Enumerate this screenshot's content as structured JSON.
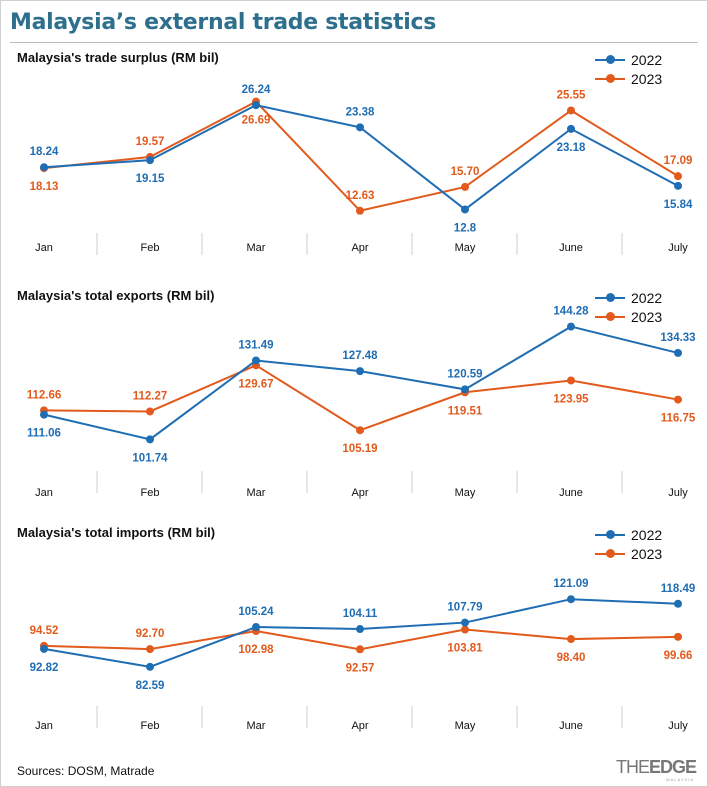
{
  "title": "Malaysia’s external trade statistics",
  "legend": {
    "series": [
      "2022",
      "2023"
    ]
  },
  "colors": {
    "2022": "#1f6db3",
    "2023": "#e25a1c",
    "title": "#2e6f8e"
  },
  "footer": {
    "sources": "Sources: DOSM, Matrade",
    "brand_the": "THE",
    "brand_edge": "EDGE",
    "brand_sub": "MALAYSIA"
  },
  "chart_data": [
    {
      "type": "line",
      "title": "Malaysia's trade surplus (RM bil)",
      "categories": [
        "Jan",
        "Feb",
        "Mar",
        "Apr",
        "May",
        "June",
        "July"
      ],
      "series": [
        {
          "name": "2022",
          "values": [
            18.24,
            19.15,
            26.24,
            23.38,
            12.8,
            23.18,
            15.84
          ],
          "labels": [
            "18.24",
            "19.15",
            "26.24",
            "23.38",
            "12.8",
            "23.18",
            "15.84"
          ]
        },
        {
          "name": "2023",
          "values": [
            18.13,
            19.57,
            26.69,
            12.63,
            15.7,
            25.55,
            17.09
          ],
          "labels": [
            "18.13",
            "19.57",
            "26.69",
            "12.63",
            "15.70",
            "25.55",
            "17.09"
          ]
        }
      ],
      "legend": "top-right",
      "grid": false
    },
    {
      "type": "line",
      "title": "Malaysia's total exports (RM bil)",
      "categories": [
        "Jan",
        "Feb",
        "Mar",
        "Apr",
        "May",
        "June",
        "July"
      ],
      "series": [
        {
          "name": "2022",
          "values": [
            111.06,
            101.74,
            131.49,
            127.48,
            120.59,
            144.28,
            134.33
          ],
          "labels": [
            "111.06",
            "101.74",
            "131.49",
            "127.48",
            "120.59",
            "144.28",
            "134.33"
          ]
        },
        {
          "name": "2023",
          "values": [
            112.66,
            112.27,
            129.67,
            105.19,
            119.51,
            123.95,
            116.75
          ],
          "labels": [
            "112.66",
            "112.27",
            "129.67",
            "105.19",
            "119.51",
            "123.95",
            "116.75"
          ]
        }
      ],
      "legend": "top-right",
      "grid": false
    },
    {
      "type": "line",
      "title": "Malaysia's total imports (RM bil)",
      "categories": [
        "Jan",
        "Feb",
        "Mar",
        "Apr",
        "May",
        "June",
        "July"
      ],
      "series": [
        {
          "name": "2022",
          "values": [
            92.82,
            82.59,
            105.24,
            104.11,
            107.79,
            121.09,
            118.49
          ],
          "labels": [
            "92.82",
            "82.59",
            "105.24",
            "104.11",
            "107.79",
            "121.09",
            "118.49"
          ]
        },
        {
          "name": "2023",
          "values": [
            94.52,
            92.7,
            102.98,
            92.57,
            103.81,
            98.4,
            99.66
          ],
          "labels": [
            "94.52",
            "92.70",
            "102.98",
            "92.57",
            "103.81",
            "98.40",
            "99.66"
          ]
        }
      ],
      "legend": "top-right",
      "grid": false
    }
  ]
}
